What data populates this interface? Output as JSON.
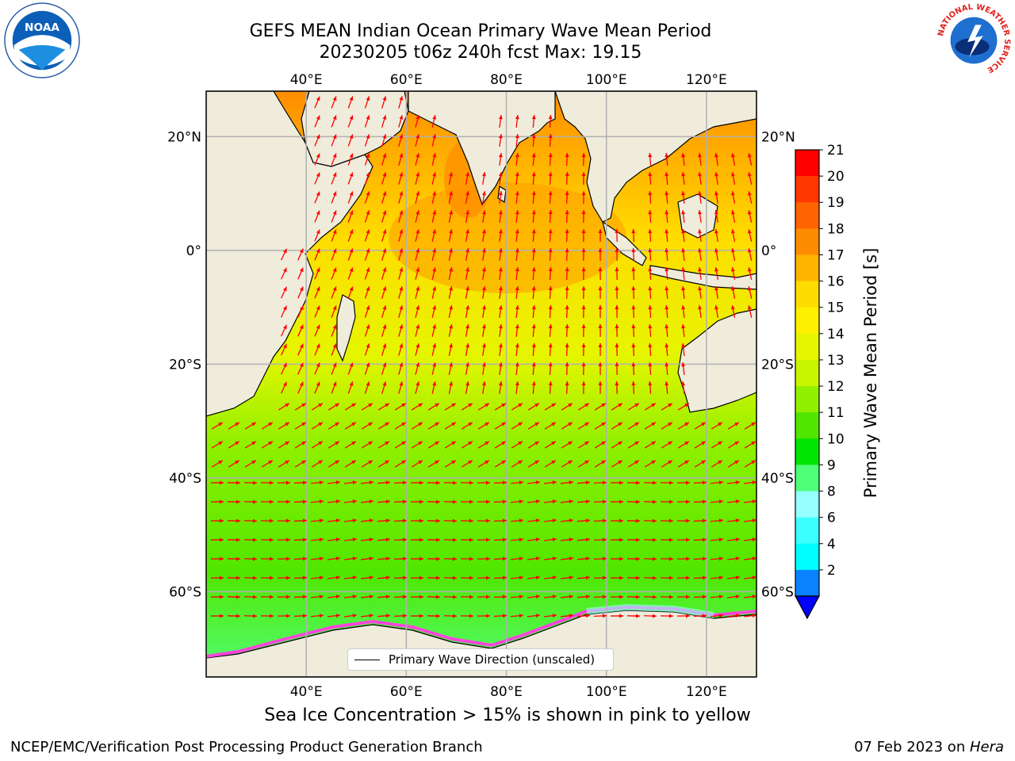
{
  "header": {
    "title_line1": "GEFS MEAN Indian Ocean Primary Wave Mean Period",
    "title_line2": "20230205 t06z 240h fcst   Max: 19.15"
  },
  "logos": {
    "left": {
      "icon": "noaa-logo",
      "text": "NOAA"
    },
    "right": {
      "icon": "nws-logo",
      "ring_text": "NATIONAL WEATHER SERVICE"
    }
  },
  "map": {
    "lon_ticks_top": [
      "40°E",
      "60°E",
      "80°E",
      "100°E",
      "120°E"
    ],
    "lon_ticks_bottom": [
      "40°E",
      "60°E",
      "80°E",
      "100°E",
      "120°E"
    ],
    "lat_ticks_left": [
      "20°N",
      "0°",
      "20°S",
      "40°S",
      "60°S"
    ],
    "lat_ticks_right": [
      "20°N",
      "0°",
      "20°S",
      "40°S",
      "60°S"
    ],
    "lon_range": [
      20,
      130
    ],
    "lat_range": [
      -75,
      28
    ],
    "grid": true,
    "legend": {
      "label": "Primary Wave Direction (unscaled)",
      "placement": "bottom-center"
    },
    "colors": {
      "land": "#efecdc",
      "arrows": "#ff0000",
      "coast": "#000000"
    }
  },
  "colorbar": {
    "label": "Primary Wave Mean Period [s]",
    "ticks": [
      "21",
      "20",
      "19",
      "18",
      "17",
      "16",
      "15",
      "14",
      "13",
      "12",
      "11",
      "10",
      "9",
      "8",
      "6",
      "4",
      "2"
    ],
    "colors": [
      "#ff0000",
      "#ff3800",
      "#ff6400",
      "#ff8c00",
      "#ffb400",
      "#ffdc00",
      "#fff000",
      "#e6f500",
      "#c8f500",
      "#91f000",
      "#50e600",
      "#00e600",
      "#50ff78",
      "#96ffff",
      "#3cffff",
      "#00ffff",
      "#0a82ff"
    ],
    "extend_color": "#0000ff"
  },
  "caption": "Sea Ice Concentration > 15% is shown in pink to yellow",
  "footer": {
    "left": "NCEP/EMC/Verification Post Processing Product Generation Branch",
    "right_prefix": "07 Feb 2023 on ",
    "right_host": "Hera"
  }
}
